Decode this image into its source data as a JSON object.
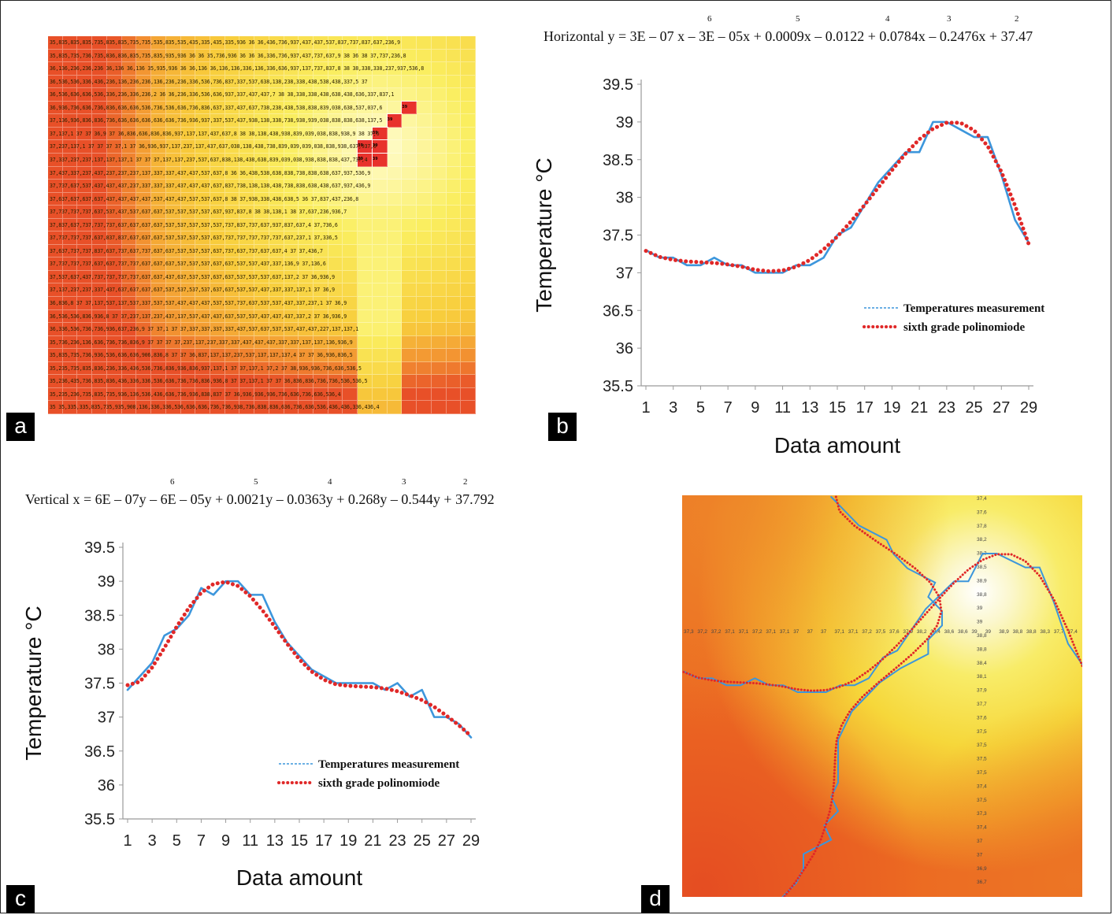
{
  "panels": {
    "a": {
      "label": "a"
    },
    "b": {
      "label": "b"
    },
    "c": {
      "label": "c"
    },
    "d": {
      "label": "d"
    }
  },
  "panel_b": {
    "equation_prefix": "Horizontal",
    "equation": "y = 3E – 07 x – 3E – 05x + 0.0009x – 0.0122 + 0.0784x – 0.2476x + 37.47",
    "exponents": [
      "6",
      "5",
      "4",
      "3",
      "2"
    ]
  },
  "panel_c": {
    "equation_prefix": "Vertical",
    "equation": "x = 6E – 07y – 6E – 05y + 0.0021y – 0.0363y + 0.268y – 0.544y + 37.792",
    "exponents": [
      "6",
      "5",
      "4",
      "3",
      "2"
    ]
  },
  "chart_data": [
    {
      "panel": "b",
      "type": "line",
      "xlabel": "Data amount",
      "ylabel": "Temperature °C",
      "ylim": [
        35.5,
        39.5
      ],
      "xlim": [
        1,
        29
      ],
      "yticks": [
        "35.5",
        "36",
        "36.5",
        "37",
        "37.5",
        "38",
        "38.5",
        "39",
        "39.5"
      ],
      "xticks": [
        "1",
        "3",
        "5",
        "7",
        "9",
        "11",
        "13",
        "15",
        "17",
        "19",
        "21",
        "23",
        "25",
        "27",
        "29"
      ],
      "legend_position": "lower-right",
      "colors": {
        "measurement": "#3c96dc",
        "fit": "#e02828"
      },
      "x": [
        1,
        2,
        3,
        4,
        5,
        6,
        7,
        8,
        9,
        10,
        11,
        12,
        13,
        14,
        15,
        16,
        17,
        18,
        19,
        20,
        21,
        22,
        23,
        24,
        25,
        26,
        27,
        28,
        29
      ],
      "series": [
        {
          "name": "Temperatures measurement",
          "style": "solid",
          "values": [
            37.3,
            37.2,
            37.2,
            37.1,
            37.1,
            37.2,
            37.1,
            37.1,
            37.0,
            37.0,
            37.0,
            37.1,
            37.1,
            37.2,
            37.5,
            37.6,
            37.9,
            38.2,
            38.4,
            38.6,
            38.6,
            39.0,
            39.0,
            38.9,
            38.8,
            38.8,
            38.3,
            37.7,
            37.4
          ]
        },
        {
          "name": "sixth grade polinomiode",
          "style": "dotted",
          "values": [
            37.29,
            37.21,
            37.17,
            37.15,
            37.14,
            37.13,
            37.11,
            37.08,
            37.04,
            37.02,
            37.03,
            37.08,
            37.17,
            37.31,
            37.48,
            37.68,
            37.9,
            38.13,
            38.36,
            38.58,
            38.77,
            38.91,
            38.99,
            38.99,
            38.89,
            38.68,
            38.34,
            37.89,
            37.38
          ]
        }
      ]
    },
    {
      "panel": "c",
      "type": "line",
      "xlabel": "Data amount",
      "ylabel": "Temperature °C",
      "ylim": [
        35.5,
        39.5
      ],
      "xlim": [
        1,
        29
      ],
      "yticks": [
        "35.5",
        "36",
        "36.5",
        "37",
        "37.5",
        "38",
        "38.5",
        "39",
        "39.5"
      ],
      "xticks": [
        "1",
        "3",
        "5",
        "7",
        "9",
        "11",
        "13",
        "15",
        "17",
        "19",
        "21",
        "23",
        "25",
        "27",
        "29"
      ],
      "legend_position": "lower-right",
      "colors": {
        "measurement": "#3c96dc",
        "fit": "#e02828"
      },
      "x": [
        1,
        2,
        3,
        4,
        5,
        6,
        7,
        8,
        9,
        10,
        11,
        12,
        13,
        14,
        15,
        16,
        17,
        18,
        19,
        20,
        21,
        22,
        23,
        24,
        25,
        26,
        27,
        28,
        29
      ],
      "series": [
        {
          "name": "Temperatures measurement",
          "style": "solid",
          "values": [
            37.4,
            37.6,
            37.8,
            38.2,
            38.3,
            38.5,
            38.9,
            38.8,
            39.0,
            39.0,
            38.8,
            38.8,
            38.4,
            38.1,
            37.9,
            37.7,
            37.6,
            37.5,
            37.5,
            37.5,
            37.5,
            37.4,
            37.5,
            37.3,
            37.4,
            37.0,
            37.0,
            36.9,
            36.7
          ]
        },
        {
          "name": "sixth grade polinomiode",
          "style": "dotted",
          "values": [
            37.47,
            37.52,
            37.73,
            38.02,
            38.33,
            38.61,
            38.83,
            38.96,
            38.99,
            38.93,
            38.78,
            38.57,
            38.33,
            38.08,
            37.85,
            37.67,
            37.55,
            37.48,
            37.46,
            37.45,
            37.44,
            37.42,
            37.38,
            37.32,
            37.25,
            37.15,
            37.02,
            36.88,
            36.72
          ]
        }
      ]
    }
  ],
  "heatmap_a": {
    "rows": [
      "35,835,835,835,735,835,835,735,735,535,835,535,435,335,435,335,936 36 36,436,736,937,437,437,537,837,737,837,637,236,9",
      "35,835,735,736,735,836,836,835,735,835,935,936 36 36 35,736,936 36 36 36,336,736,937,437,737,637,9 38 36 38 37,737,236,8",
      "36,136,236,236,236 36,136 36,136 35,935,936 36 36,136 36,136,136,336,136,336,636,937,137,737,837,8 38 38,338,338,237,937,536,8",
      "36,536,536,336,436,236,136,236,236,136,236,236,336,536,736,837,337,537,638,138,238,338,438,538,438,337,5 37",
      "36,536,636,636,536,336,236,336,236,2 36 36,236,336,536,636,937,337,437,437,7 38 38,338,338,438,638,438,636,337,837,1",
      "36,936,736,636,736,836,636,636,536,736,536,636,736,836,637,337,437,637,738,238,438,538,838,839,038,638,537,037,6",
      "37,136,936,836,836,736,636,636,636,636,636,736,936,937,337,537,437,938,138,338,738,938,939,038,838,838,638,137,5",
      "37,137,1 37 37 36,9 37 36,836,636,836,836,937,137,137,437,637,8 38 38,138,438,938,839,039,038,838,938,9 38 37,6",
      "37,237,137,1 37 37 37 37,1 37 36,936,937,137,237,137,437,637,038,138,438,738,839,039,039,038,838,938,637,937,6",
      "37,337,237,237,137,137,137,1 37 37 37,137,137,237,537,637,838,138,438,638,839,039,038,938,838,838,437,737,4",
      "37,437,337,237,437,237,237,237,137,337,337,437,437,537,637,8 36 36,438,538,638,838,738,838,638,637,937,536,9",
      "37,737,637,537,437,437,437,237,337,337,337,437,437,437,637,837,738,138,138,438,738,838,638,438,637,937,436,9",
      "37,637,637,637,637,437,437,437,437,537,437,437,537,537,637,8 38 37,938,338,438,638,5 36 37,837,437,236,8",
      "37,737,737,737,637,537,437,537,637,637,537,537,537,537,637,937,837,8 38 38,138,1 38 37,637,236,936,7",
      "37,837,637,737,737,737,637,637,637,637,537,537,537,537,537,737,837,737,637,937,837,637,4 37,736,6",
      "37,737,737,737,637,837,837,637,637,637,537,537,537,537,637,737,737,737,737,737,637,237,1 37,336,5",
      "37,637,737,737,837,637,737,637,737,637,637,537,537,537,637,737,637,737,637,637,4 37 37,436,7",
      "37,737,737,737,637,637,737,737,637,637,637,537,537,537,637,637,537,537,437,337,136,9 37,136,6",
      "37,537,637,437,737,737,737,737,637,637,437,637,537,537,637,637,537,537,537,637,137,2 37 36,936,9",
      "37,137,237,237,337,437,637,637,637,637,537,537,537,537,637,637,537,537,437,337,337,137,1 37 36,9",
      "36,836,8 37 37,137,537,137,537,337,537,537,437,437,437,537,537,737,637,537,537,437,337,237,1 37 36,9",
      "36,536,536,836,936,8 37 37,237,137,237,437,137,537,437,437,637,537,537,437,437,437,337,2 37 36,936,9",
      "36,336,536,736,736,936,637,236,9 37 37,1 37 37,337,337,337,337,437,537,637,537,537,437,437,227,137,137,1",
      "35,736,236,136,636,736,736,836,9 37 37 37 37,237,137,237,337,337,437,437,437,337,337,137,137,136,936,9",
      "35,835,735,736,936,536,636,636,906,836,8 37 37 36,837,137,137,237,537,137,137,137,4 37 37 36,936,836,5",
      "35,235,735,835,836,236,336,436,536,736,836,936,836,937,137,1 37 37,137,1 37,2 37 38,936,936,736,636,536,5",
      "35,236,435,736,835,836,436,336,336,536,636,736,736,836,936,8 37 37,137,1 37 37 36,836,836,736,736,536,536,5",
      "35,235,236,735,835,735,936,136,536,436,636,736,936,838,837 37 36,936,936,936,736,636,736,636,536,4",
      "35 35,335,335,835,735,935,908,136,336,336,536,636,636,736,736,938,736,838,836,636,736,636,536,436,436,336,436,4"
    ]
  },
  "map_d": {
    "horizontal_readings": [
      "37,3",
      "37,2",
      "37,2",
      "37,1",
      "37,1",
      "37,2",
      "37,1",
      "37,1",
      "37",
      "37",
      "37",
      "37,1",
      "37,1",
      "37,2",
      "37,5",
      "37,6",
      "37,9",
      "38,2",
      "38,4",
      "38,6",
      "38,6",
      "39",
      "39",
      "38,9",
      "38,8",
      "38,8",
      "38,3",
      "37,7",
      "37,4"
    ],
    "vertical_readings": [
      "37,4",
      "37,6",
      "37,8",
      "38,2",
      "38,3",
      "38,5",
      "38,9",
      "38,8",
      "39",
      "39",
      "38,8",
      "38,8",
      "38,4",
      "38,1",
      "37,9",
      "37,7",
      "37,6",
      "37,5",
      "37,5",
      "37,5",
      "37,5",
      "37,4",
      "37,5",
      "37,3",
      "37,4",
      "37",
      "37",
      "36,9",
      "36,7"
    ]
  }
}
